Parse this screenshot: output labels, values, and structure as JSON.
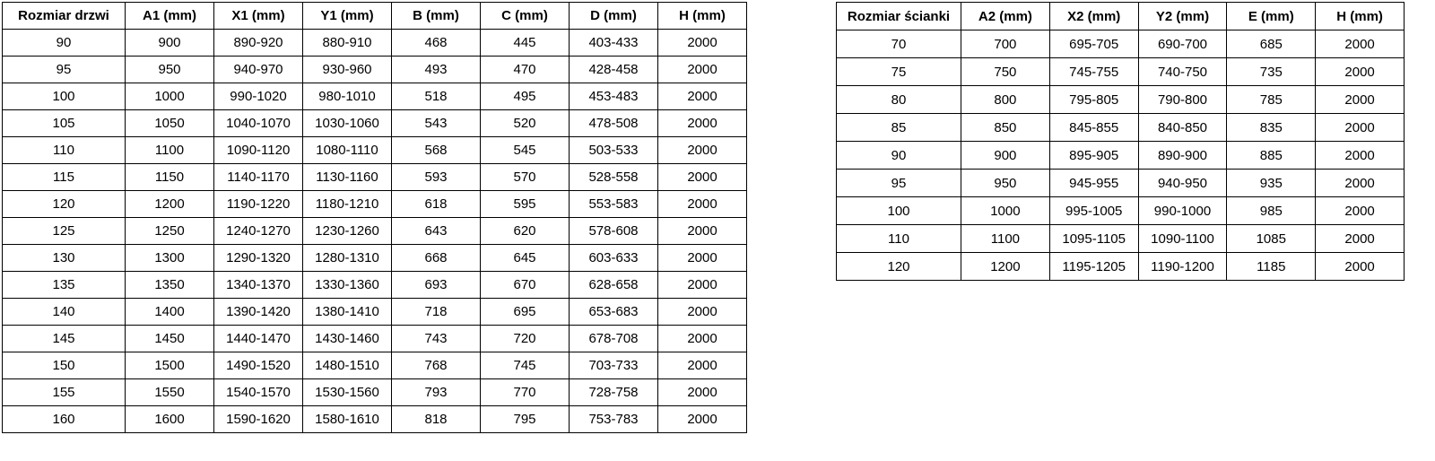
{
  "door_table": {
    "title": "Rozmiar drzwi table",
    "headers": [
      "Rozmiar drzwi",
      "A1 (mm)",
      "X1 (mm)",
      "Y1 (mm)",
      "B (mm)",
      "C (mm)",
      "D (mm)",
      "H (mm)"
    ],
    "rows": [
      [
        "90",
        "900",
        "890-920",
        "880-910",
        "468",
        "445",
        "403-433",
        "2000"
      ],
      [
        "95",
        "950",
        "940-970",
        "930-960",
        "493",
        "470",
        "428-458",
        "2000"
      ],
      [
        "100",
        "1000",
        "990-1020",
        "980-1010",
        "518",
        "495",
        "453-483",
        "2000"
      ],
      [
        "105",
        "1050",
        "1040-1070",
        "1030-1060",
        "543",
        "520",
        "478-508",
        "2000"
      ],
      [
        "110",
        "1100",
        "1090-1120",
        "1080-1110",
        "568",
        "545",
        "503-533",
        "2000"
      ],
      [
        "115",
        "1150",
        "1140-1170",
        "1130-1160",
        "593",
        "570",
        "528-558",
        "2000"
      ],
      [
        "120",
        "1200",
        "1190-1220",
        "1180-1210",
        "618",
        "595",
        "553-583",
        "2000"
      ],
      [
        "125",
        "1250",
        "1240-1270",
        "1230-1260",
        "643",
        "620",
        "578-608",
        "2000"
      ],
      [
        "130",
        "1300",
        "1290-1320",
        "1280-1310",
        "668",
        "645",
        "603-633",
        "2000"
      ],
      [
        "135",
        "1350",
        "1340-1370",
        "1330-1360",
        "693",
        "670",
        "628-658",
        "2000"
      ],
      [
        "140",
        "1400",
        "1390-1420",
        "1380-1410",
        "718",
        "695",
        "653-683",
        "2000"
      ],
      [
        "145",
        "1450",
        "1440-1470",
        "1430-1460",
        "743",
        "720",
        "678-708",
        "2000"
      ],
      [
        "150",
        "1500",
        "1490-1520",
        "1480-1510",
        "768",
        "745",
        "703-733",
        "2000"
      ],
      [
        "155",
        "1550",
        "1540-1570",
        "1530-1560",
        "793",
        "770",
        "728-758",
        "2000"
      ],
      [
        "160",
        "1600",
        "1590-1620",
        "1580-1610",
        "818",
        "795",
        "753-783",
        "2000"
      ]
    ]
  },
  "wall_table": {
    "title": "Rozmiar ścianki table",
    "headers": [
      "Rozmiar ścianki",
      "A2 (mm)",
      "X2 (mm)",
      "Y2 (mm)",
      "E (mm)",
      "H (mm)"
    ],
    "rows": [
      [
        "70",
        "700",
        "695-705",
        "690-700",
        "685",
        "2000"
      ],
      [
        "75",
        "750",
        "745-755",
        "740-750",
        "735",
        "2000"
      ],
      [
        "80",
        "800",
        "795-805",
        "790-800",
        "785",
        "2000"
      ],
      [
        "85",
        "850",
        "845-855",
        "840-850",
        "835",
        "2000"
      ],
      [
        "90",
        "900",
        "895-905",
        "890-900",
        "885",
        "2000"
      ],
      [
        "95",
        "950",
        "945-955",
        "940-950",
        "935",
        "2000"
      ],
      [
        "100",
        "1000",
        "995-1005",
        "990-1000",
        "985",
        "2000"
      ],
      [
        "110",
        "1100",
        "1095-1105",
        "1090-1100",
        "1085",
        "2000"
      ],
      [
        "120",
        "1200",
        "1195-1205",
        "1190-1200",
        "1185",
        "2000"
      ]
    ]
  },
  "colors": {
    "border": "#000000",
    "background": "#ffffff",
    "text": "#000000"
  }
}
